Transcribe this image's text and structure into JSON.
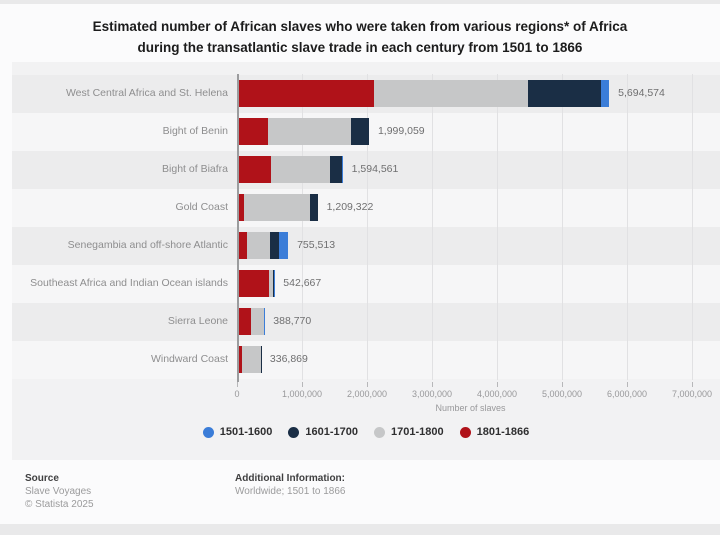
{
  "page": {
    "title_line1": "Estimated number of African slaves who were taken from various regions* of Africa",
    "title_line2": "during the transatlantic slave trade in each century from 1501 to 1866"
  },
  "chart_data": {
    "type": "bar",
    "orientation": "horizontal",
    "stacked": true,
    "title": "Estimated number of African slaves who were taken from various regions* of Africa during the transatlantic slave trade in each century from 1501 to 1866",
    "xlabel": "Number of slaves",
    "ylabel": "",
    "xlim": [
      0,
      7000000
    ],
    "x_ticks": [
      0,
      1000000,
      2000000,
      3000000,
      4000000,
      5000000,
      6000000,
      7000000
    ],
    "x_tick_labels": [
      "0",
      "1,000,000",
      "2,000,000",
      "3,000,000",
      "4,000,000",
      "5,000,000",
      "6,000,000",
      "7,000,000"
    ],
    "grid": "vertical",
    "legend_position": "bottom",
    "categories": [
      "West Central Africa and St. Helena",
      "Bight of Benin",
      "Bight of Biafra",
      "Gold Coast",
      "Senegambia and off-shore Atlantic",
      "Southeast Africa and Indian Ocean islands",
      "Sierra Leone",
      "Windward Coast"
    ],
    "series": [
      {
        "name": "1501-1600",
        "color": "#3b7dd8",
        "values": [
          117878,
          0,
          8459,
          473,
          147280,
          3851,
          1405,
          0
        ]
      },
      {
        "name": "1601-1700",
        "color": "#1a2e45",
        "values": [
          1134807,
          269812,
          186322,
          119127,
          136104,
          10525,
          5692,
          1630
        ]
      },
      {
        "name": "1701-1800",
        "color": "#c6c7c8",
        "values": [
          2365204,
          1284585,
          904616,
          1014196,
          351950,
          70644,
          192285,
          289583
        ]
      },
      {
        "name": "1801-1866",
        "color": "#b01219",
        "values": [
          2076685,
          444662,
          495164,
          75526,
          120179,
          457647,
          189388,
          45656
        ]
      }
    ],
    "totals": [
      5694574,
      1999059,
      1594561,
      1209322,
      755513,
      542667,
      388770,
      336869
    ],
    "total_labels": [
      "5,694,574",
      "1,999,059",
      "1,594,561",
      "1,209,322",
      "755,513",
      "542,667",
      "388,770",
      "336,869"
    ]
  },
  "footer": {
    "source_label": "Source",
    "source_value": "Slave Voyages",
    "copyright": "© Statista 2025",
    "additional_label": "Additional Information:",
    "additional_value": "Worldwide; 1501 to 1866"
  }
}
